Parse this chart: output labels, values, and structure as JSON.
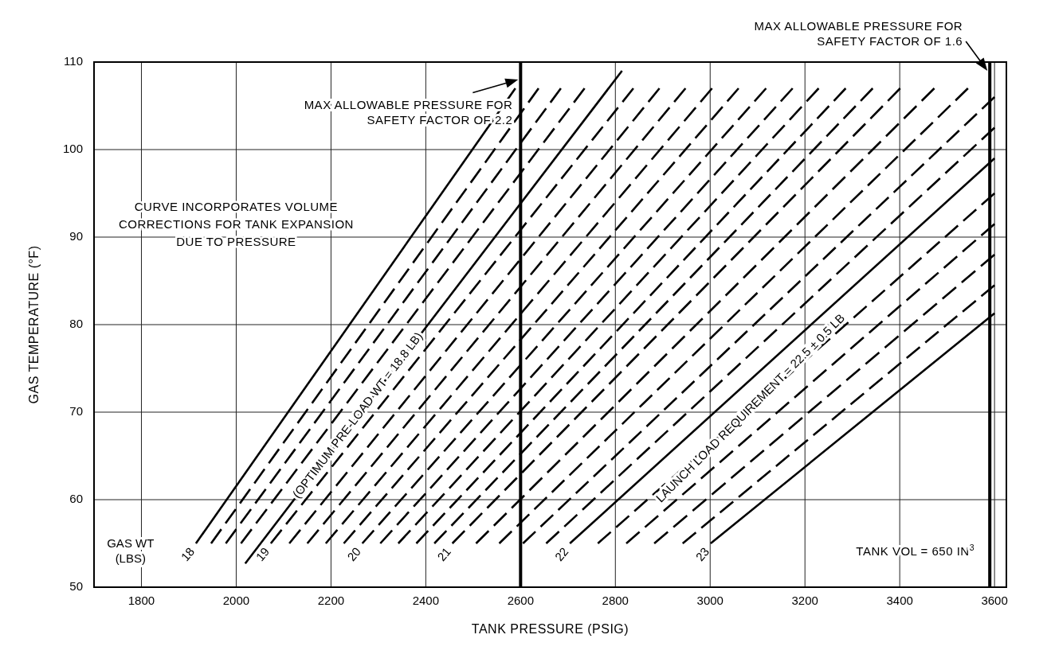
{
  "chart_data": {
    "type": "line",
    "xlabel": "TANK PRESSURE (PSIG)",
    "ylabel": "GAS TEMPERATURE (°F)",
    "legend_title": "GAS WT (LBS)",
    "xlim": [
      1700,
      3625
    ],
    "xticks": [
      1800,
      2000,
      2200,
      2400,
      2600,
      2800,
      3000,
      3200,
      3400,
      3600
    ],
    "ylim": [
      50,
      110
    ],
    "yticks": [
      50,
      60,
      70,
      80,
      90,
      100,
      110
    ],
    "grid": true,
    "legend": false,
    "ref_lines": [
      {
        "axis": "x",
        "value": 2600,
        "label": "MAX ALLOWABLE PRESSURE FOR SAFETY FACTOR OF 2.2"
      },
      {
        "axis": "x",
        "value": 3590,
        "label": "MAX ALLOWABLE PRESSURE FOR SAFETY FACTOR OF 1.6"
      }
    ],
    "annotations": [
      "CURVE INCORPORATES VOLUME CORRECTIONS FOR TANK EXPANSION DUE TO PRESSURE",
      "TANK VOL = 650 IN$^{3}$",
      "LAUNCH LOAD REQUIREMENT = 22.5 ± 0.5 LB"
    ],
    "series": [
      {
        "name": "18",
        "color": "#000000",
        "line_style": "solid",
        "x": [
          1915,
          2589
        ],
        "values": [
          55,
          107
        ]
      },
      {
        "color": "#000000",
        "line_style": "dashed",
        "x": [
          1947,
          2638
        ],
        "values": [
          55,
          107
        ]
      },
      {
        "color": "#000000",
        "line_style": "dashed",
        "x": [
          1978,
          2685
        ],
        "values": [
          55,
          107
        ]
      },
      {
        "color": "#000000",
        "line_style": "dashed",
        "x": [
          2010,
          2735
        ],
        "values": [
          55,
          107
        ]
      },
      {
        "name": "(OPTIMUM PRE-LOAD WT = 18.8 LB)",
        "color": "#000000",
        "line_style": "solid",
        "x": [
          2019,
          2814
        ],
        "values": [
          52.7,
          109
        ]
      },
      {
        "name": "19",
        "color": "#000000",
        "line_style": "dashed",
        "x": [
          2073,
          2838
        ],
        "values": [
          55,
          107
        ]
      },
      {
        "color": "#000000",
        "line_style": "dashed",
        "x": [
          2112,
          2893
        ],
        "values": [
          55,
          107
        ]
      },
      {
        "color": "#000000",
        "line_style": "dashed",
        "x": [
          2150,
          2948
        ],
        "values": [
          55,
          107
        ]
      },
      {
        "color": "#000000",
        "line_style": "dashed",
        "x": [
          2189,
          3004
        ],
        "values": [
          55,
          107
        ]
      },
      {
        "color": "#000000",
        "line_style": "dashed",
        "x": [
          2227,
          3060
        ],
        "values": [
          55,
          107
        ]
      },
      {
        "name": "20",
        "color": "#000000",
        "line_style": "dashed",
        "x": [
          2266,
          3118
        ],
        "values": [
          55,
          107
        ]
      },
      {
        "color": "#000000",
        "line_style": "dashed",
        "x": [
          2304,
          3174
        ],
        "values": [
          55,
          107
        ]
      },
      {
        "color": "#000000",
        "line_style": "dashed",
        "x": [
          2342,
          3229
        ],
        "values": [
          55,
          107
        ]
      },
      {
        "color": "#000000",
        "line_style": "dashed",
        "x": [
          2380,
          3286
        ],
        "values": [
          55,
          107
        ]
      },
      {
        "color": "#000000",
        "line_style": "dashed",
        "x": [
          2418,
          3343
        ],
        "values": [
          55,
          107
        ]
      },
      {
        "name": "21",
        "color": "#000000",
        "line_style": "dashed",
        "x": [
          2456,
          3401
        ],
        "values": [
          55,
          107
        ]
      },
      {
        "color": "#000000",
        "line_style": "dashed",
        "x": [
          2506,
          3473
        ],
        "values": [
          55,
          107
        ]
      },
      {
        "color": "#000000",
        "line_style": "dashed",
        "x": [
          2555,
          3544
        ],
        "values": [
          55,
          107
        ]
      },
      {
        "color": "#000000",
        "line_style": "dashed",
        "x": [
          2605,
          3600
        ],
        "values": [
          55,
          106
        ]
      },
      {
        "color": "#000000",
        "line_style": "dashed",
        "x": [
          2654,
          3600
        ],
        "values": [
          55,
          102.5
        ]
      },
      {
        "name": "22",
        "color": "#000000",
        "line_style": "solid",
        "x": [
          2704,
          3600
        ],
        "values": [
          55,
          99
        ]
      },
      {
        "color": "#000000",
        "line_style": "dashed",
        "x": [
          2763,
          3600
        ],
        "values": [
          55,
          95
        ]
      },
      {
        "color": "#000000",
        "line_style": "dashed",
        "x": [
          2823,
          3600
        ],
        "values": [
          55,
          91.5
        ]
      },
      {
        "color": "#000000",
        "line_style": "dashed",
        "x": [
          2882,
          3600
        ],
        "values": [
          55,
          88
        ]
      },
      {
        "color": "#000000",
        "line_style": "dashed",
        "x": [
          2942,
          3600
        ],
        "values": [
          55,
          84.5
        ]
      },
      {
        "name": "23",
        "color": "#000000",
        "line_style": "solid",
        "x": [
          3001,
          3600
        ],
        "values": [
          55,
          81.3
        ]
      }
    ]
  }
}
